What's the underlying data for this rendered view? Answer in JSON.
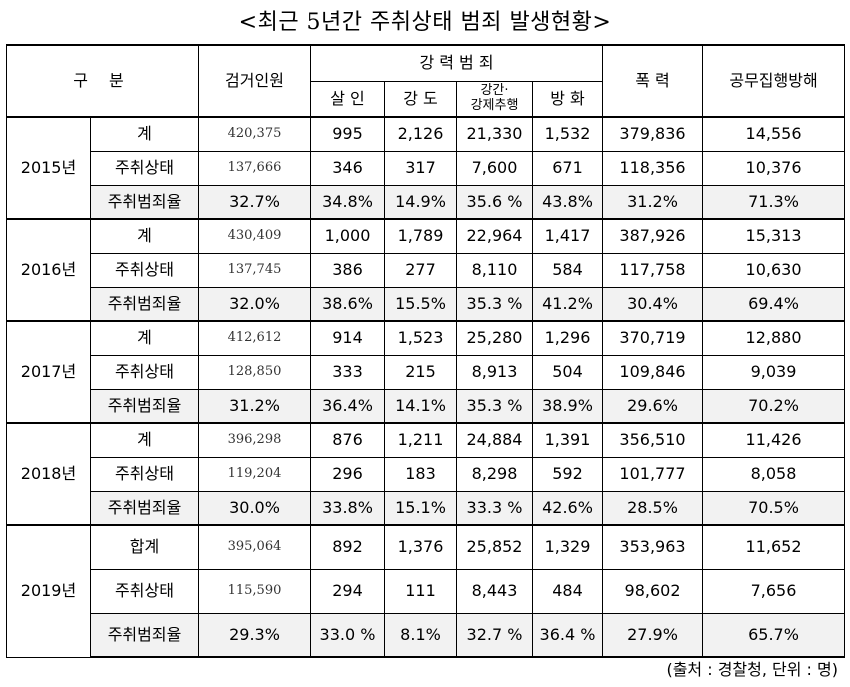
{
  "title": "<최근 5년간 주취상태 범죄 발생현황>",
  "header": {
    "gubun": "구    분",
    "arrested": "검거인원",
    "violent_group": "강 력 범 죄",
    "murder": "살 인",
    "robbery": "강 도",
    "rape_line1": "강간·",
    "rape_line2": "강제추행",
    "arson": "방 화",
    "assault": "폭 력",
    "obstruction": "공무집행방해"
  },
  "years": [
    {
      "year": "2015년",
      "rows": [
        {
          "label": "계",
          "arrested": "420,375",
          "murder": "995",
          "robbery": "2,126",
          "rape": "21,330",
          "arson": "1,532",
          "assault": "379,836",
          "obstruction": "14,556"
        },
        {
          "label": "주취상태",
          "arrested": "137,666",
          "murder": "346",
          "robbery": "317",
          "rape": "7,600",
          "arson": "671",
          "assault": "118,356",
          "obstruction": "10,376"
        },
        {
          "label": "주취범죄율",
          "arrested": "32.7%",
          "murder": "34.8%",
          "robbery": "14.9%",
          "rape": "35.6 %",
          "arson": "43.8%",
          "assault": "31.2%",
          "obstruction": "71.3%"
        }
      ]
    },
    {
      "year": "2016년",
      "rows": [
        {
          "label": "계",
          "arrested": "430,409",
          "murder": "1,000",
          "robbery": "1,789",
          "rape": "22,964",
          "arson": "1,417",
          "assault": "387,926",
          "obstruction": "15,313"
        },
        {
          "label": "주취상태",
          "arrested": "137,745",
          "murder": "386",
          "robbery": "277",
          "rape": "8,110",
          "arson": "584",
          "assault": "117,758",
          "obstruction": "10,630"
        },
        {
          "label": "주취범죄율",
          "arrested": "32.0%",
          "murder": "38.6%",
          "robbery": "15.5%",
          "rape": "35.3 %",
          "arson": "41.2%",
          "assault": "30.4%",
          "obstruction": "69.4%"
        }
      ]
    },
    {
      "year": "2017년",
      "rows": [
        {
          "label": "계",
          "arrested": "412,612",
          "murder": "914",
          "robbery": "1,523",
          "rape": "25,280",
          "arson": "1,296",
          "assault": "370,719",
          "obstruction": "12,880"
        },
        {
          "label": "주취상태",
          "arrested": "128,850",
          "murder": "333",
          "robbery": "215",
          "rape": "8,913",
          "arson": "504",
          "assault": "109,846",
          "obstruction": "9,039"
        },
        {
          "label": "주취범죄율",
          "arrested": "31.2%",
          "murder": "36.4%",
          "robbery": "14.1%",
          "rape": "35.3 %",
          "arson": "38.9%",
          "assault": "29.6%",
          "obstruction": "70.2%"
        }
      ]
    },
    {
      "year": "2018년",
      "rows": [
        {
          "label": "계",
          "arrested": "396,298",
          "murder": "876",
          "robbery": "1,211",
          "rape": "24,884",
          "arson": "1,391",
          "assault": "356,510",
          "obstruction": "11,426"
        },
        {
          "label": "주취상태",
          "arrested": "119,204",
          "murder": "296",
          "robbery": "183",
          "rape": "8,298",
          "arson": "592",
          "assault": "101,777",
          "obstruction": "8,058"
        },
        {
          "label": "주취범죄율",
          "arrested": "30.0%",
          "murder": "33.8%",
          "robbery": "15.1%",
          "rape": "33.3 %",
          "arson": "42.6%",
          "assault": "28.5%",
          "obstruction": "70.5%"
        }
      ]
    },
    {
      "year": "2019년",
      "rows": [
        {
          "label": "합계",
          "arrested": "395,064",
          "murder": "892",
          "robbery": "1,376",
          "rape": "25,852",
          "arson": "1,329",
          "assault": "353,963",
          "obstruction": "11,652"
        },
        {
          "label": "주취상태",
          "arrested": "115,590",
          "murder": "294",
          "robbery": "111",
          "rape": "8,443",
          "arson": "484",
          "assault": "98,602",
          "obstruction": "7,656"
        },
        {
          "label": "주취범죄율",
          "arrested": "29.3%",
          "murder": "33.0 %",
          "robbery": "8.1%",
          "rape": "32.7 %",
          "arson": "36.4 %",
          "assault": "27.9%",
          "obstruction": "65.7%"
        }
      ]
    }
  ],
  "source": "(출처 : 경찰청, 단위 : 명)"
}
